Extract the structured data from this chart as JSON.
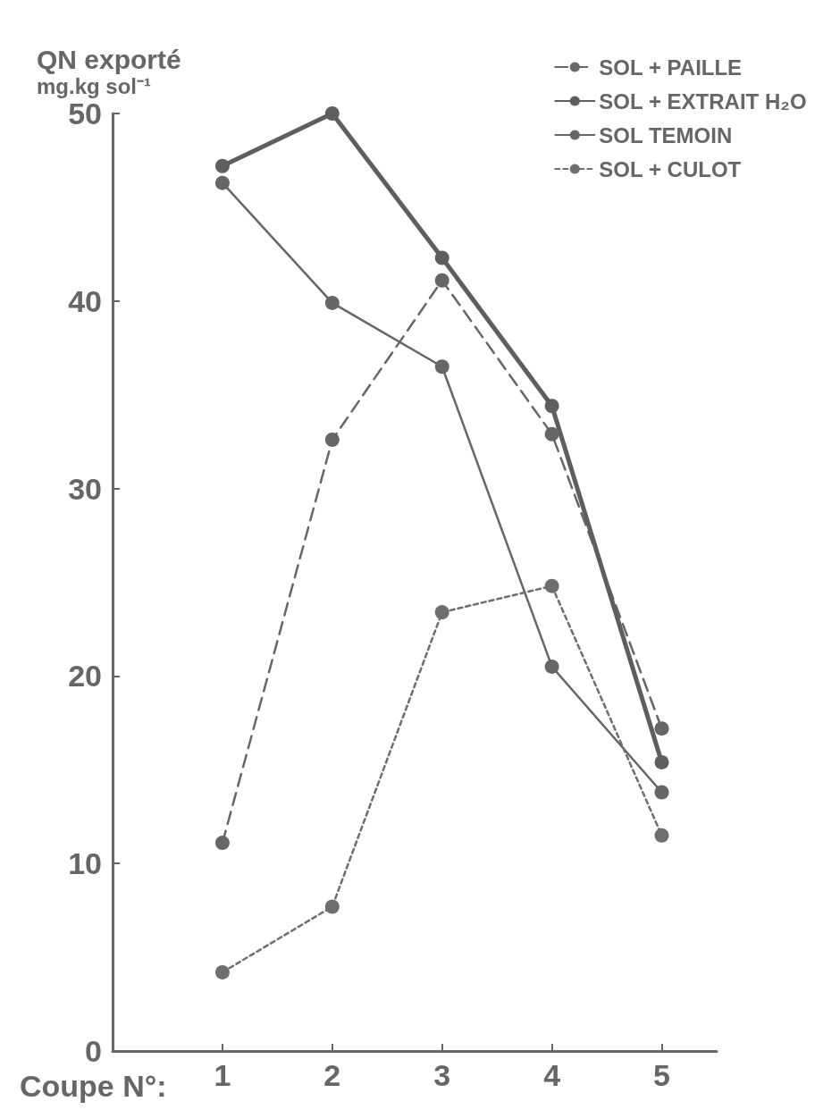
{
  "chart_data": {
    "type": "line",
    "xlabel": "Coupe N°:",
    "ylabel": "QN exporté\nmg.kg sol⁻¹",
    "x": [
      1,
      2,
      3,
      4,
      5
    ],
    "xlim": [
      0,
      5.5
    ],
    "xticks": [
      1,
      2,
      3,
      4,
      5
    ],
    "ylim": [
      0,
      50
    ],
    "yticks": [
      0,
      10,
      20,
      30,
      40,
      50
    ],
    "grid": false,
    "legend": "top right",
    "marker": "circle",
    "series": [
      {
        "name": "SOL + PAILLE",
        "color": "#666666",
        "line_style": "dashed",
        "values": [
          11.1,
          32.6,
          41.1,
          32.9,
          17.2
        ]
      },
      {
        "name": "SOL + EXTRAIT H₂O",
        "color": "#5e5e5e",
        "line_style": "solid",
        "values": [
          47.2,
          50.0,
          42.3,
          34.4,
          15.4
        ]
      },
      {
        "name": "SOL TEMOIN",
        "color": "#666666",
        "line_style": "solid",
        "values": [
          46.3,
          39.9,
          36.5,
          20.5,
          13.8
        ]
      },
      {
        "name": "SOL + CULOT",
        "color": "#6e6e6e",
        "line_style": "dotted",
        "values": [
          4.2,
          7.7,
          23.4,
          24.8,
          11.5
        ]
      }
    ]
  }
}
